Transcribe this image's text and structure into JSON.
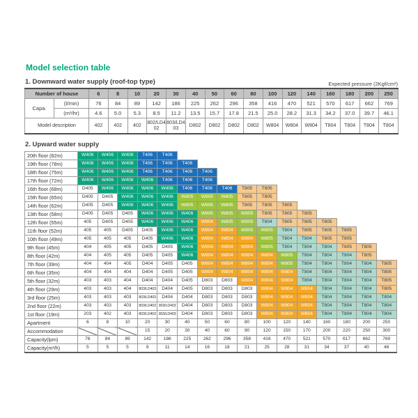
{
  "page_title": "Model selection table",
  "accent_color": "#00a87e",
  "section1": {
    "heading": "1. Downward water supply (roof-top type)",
    "note": "Expected pressure (2Kgf/cm²)",
    "header_label": "Number of house",
    "house_counts": [
      "6",
      "8",
      "10",
      "20",
      "30",
      "40",
      "50",
      "60",
      "80",
      "100",
      "120",
      "140",
      "160",
      "180",
      "200",
      "250"
    ],
    "capa_label": "Capa.",
    "capa_rows": [
      {
        "unit": "(ℓ/min)",
        "values": [
          "76",
          "84",
          "89",
          "142",
          "186",
          "225",
          "262",
          "296",
          "358",
          "416",
          "470",
          "521",
          "570",
          "617",
          "662",
          "769"
        ]
      },
      {
        "unit": "(m³/hr)",
        "values": [
          "4.6",
          "5.0",
          "5.3",
          "8.5",
          "11.2",
          "13.5",
          "15.7",
          "17.8",
          "21.5",
          "25.0",
          "28.2",
          "31.3",
          "34.2",
          "37.0",
          "39.7",
          "46.1"
        ]
      }
    ],
    "model_label": "Model description",
    "models": [
      "402",
      "402",
      "402",
      "802/LD402",
      "803/LD403",
      "D802",
      "D802",
      "D802",
      "D802",
      "W804",
      "W804",
      "W804",
      "T804",
      "T804",
      "T804",
      "T804"
    ]
  },
  "section2": {
    "heading": "2. Upward water supply",
    "floors": [
      {
        "label": "20th floor (82m)",
        "cells": [
          "W406",
          "W406",
          "W406",
          "T406",
          "T406",
          null,
          null,
          null,
          null,
          null,
          null,
          null,
          null,
          null,
          null,
          null
        ]
      },
      {
        "label": "19th floor (78m)",
        "cells": [
          "W406",
          "W406",
          "W406",
          "T406",
          "T406",
          "T406",
          null,
          null,
          null,
          null,
          null,
          null,
          null,
          null,
          null,
          null
        ]
      },
      {
        "label": "18th floor (75m)",
        "cells": [
          "W406",
          "W406",
          "W406",
          "T406",
          "T406",
          "T406",
          "T406",
          null,
          null,
          null,
          null,
          null,
          null,
          null,
          null,
          null
        ]
      },
      {
        "label": "17th floor (72m)",
        "cells": [
          "W406",
          "W406",
          "W406",
          "W406",
          "T406",
          "T406",
          "T406",
          null,
          null,
          null,
          null,
          null,
          null,
          null,
          null,
          null
        ]
      },
      {
        "label": "16th floor (68m)",
        "cells": [
          "D405",
          "W406",
          "W406",
          "W406",
          "W406",
          "T406",
          "T406",
          "T406",
          "T805",
          "T805",
          null,
          null,
          null,
          null,
          null,
          null
        ]
      },
      {
        "label": "15th floor (65m)",
        "cells": [
          "D405",
          "D405",
          "W406",
          "W406",
          "W406",
          "W805",
          "W805",
          "W805",
          "T805",
          "T805",
          null,
          null,
          null,
          null,
          null,
          null
        ]
      },
      {
        "label": "14th floor (62m)",
        "cells": [
          "D405",
          "D405",
          "W406",
          "W406",
          "W406",
          "W805",
          "W805",
          "W805",
          "T805",
          "T805",
          "T805",
          null,
          null,
          null,
          null,
          null
        ]
      },
      {
        "label": "13th floor (58m)",
        "cells": [
          "D405",
          "D405",
          "D405",
          "W406",
          "W406",
          "W406",
          "W805",
          "W805",
          "W805",
          "T805",
          "T805",
          "T805",
          null,
          null,
          null,
          null
        ]
      },
      {
        "label": "12th floor (55m)",
        "cells": [
          "405",
          "D405",
          "D405",
          "W406",
          "W406",
          "W406",
          "W804",
          "W805",
          "W805",
          "T804",
          "T805",
          "T805",
          "T805",
          null,
          null,
          null
        ]
      },
      {
        "label": "11th floor (52m)",
        "cells": [
          "405",
          "405",
          "D405",
          "D405",
          "W406",
          "W406",
          "W804",
          "W804",
          "W805",
          "W805",
          "T804",
          "T805",
          "T805",
          "T805",
          null,
          null
        ]
      },
      {
        "label": "10th floor (49m)",
        "cells": [
          "405",
          "405",
          "405",
          "D405",
          "W406",
          "W406",
          "W804",
          "W804",
          "W804",
          "W805",
          "T804",
          "T804",
          "T805",
          "T805",
          null,
          null
        ]
      },
      {
        "label": "9th floor (45m)",
        "cells": [
          "404",
          "405",
          "405",
          "D405",
          "D405",
          "W406",
          "W804",
          "W804",
          "W804",
          "W805",
          "T804",
          "T804",
          "T804",
          "T805",
          "T805",
          null
        ]
      },
      {
        "label": "8th floor (42m)",
        "cells": [
          "404",
          "405",
          "405",
          "D405",
          "D405",
          "W406",
          "W804",
          "W804",
          "W804",
          "W804",
          "W805",
          "T804",
          "T804",
          "T804",
          "T805",
          null
        ]
      },
      {
        "label": "7th floor (39m)",
        "cells": [
          "404",
          "404",
          "405",
          "D404",
          "D405",
          "D405",
          "W804",
          "W804",
          "W804",
          "W804",
          "W805",
          "T804",
          "T804",
          "T804",
          "T804",
          "T805"
        ]
      },
      {
        "label": "6th floor (35m)",
        "cells": [
          "404",
          "404",
          "404",
          "D404",
          "D405",
          "D405",
          "W804",
          "W804",
          "W804",
          "W804",
          "W804",
          "T804",
          "T804",
          "T804",
          "T804",
          "T805"
        ]
      },
      {
        "label": "5th floor (32m)",
        "cells": [
          "403",
          "403",
          "404",
          "D404",
          "D404",
          "D405",
          "D803",
          "D803",
          "W804",
          "W804",
          "W804",
          "T804",
          "T804",
          "T804",
          "T804",
          "T805"
        ]
      },
      {
        "label": "4th floor (29m)",
        "cells": [
          "403",
          "403",
          "404",
          "803/LD403",
          "D404",
          "D405",
          "D803",
          "D803",
          "D803",
          "W804",
          "W804",
          "W804",
          "T804",
          "T804",
          "T804",
          "T805"
        ]
      },
      {
        "label": "3rd floor (25m)",
        "cells": [
          "403",
          "403",
          "403",
          "803/LD403",
          "D404",
          "D404",
          "D803",
          "D803",
          "D803",
          "W804",
          "W804",
          "W804",
          "T804",
          "T804",
          "T804",
          "T804"
        ]
      },
      {
        "label": "2nd floor (22m)",
        "cells": [
          "403",
          "403",
          "403",
          "803/LD403",
          "803/LD403",
          "D404",
          "D803",
          "D803",
          "D803",
          "W804",
          "W804",
          "W804",
          "T804",
          "T804",
          "T804",
          "T804"
        ]
      },
      {
        "label": "1st floor (19m)",
        "cells": [
          "203",
          "402",
          "403",
          "803/LD403",
          "803/LD403",
          "D404",
          "D803",
          "D803",
          "D803",
          "W804",
          "W804",
          "W804",
          "T804",
          "T804",
          "T804",
          "T804"
        ]
      }
    ],
    "bottom_rows": [
      {
        "label": "Apartment",
        "values": [
          "6",
          "8",
          "10",
          "20",
          "30",
          "40",
          "50",
          "60",
          "80",
          "100",
          "120",
          "140",
          "160",
          "180",
          "200",
          "250"
        ]
      },
      {
        "label": "Accommodation",
        "values": [
          "/",
          "/",
          "/",
          "15",
          "20",
          "30",
          "40",
          "60",
          "90",
          "120",
          "150",
          "170",
          "200",
          "220",
          "250",
          "300"
        ]
      },
      {
        "label": "Capacity(lpm)",
        "values": [
          "76",
          "84",
          "89",
          "142",
          "186",
          "225",
          "262",
          "296",
          "358",
          "416",
          "470",
          "521",
          "570",
          "617",
          "662",
          "769"
        ]
      },
      {
        "label": "Capacity(m³/h)",
        "values": [
          "5",
          "5",
          "5",
          "9",
          "11",
          "14",
          "16",
          "18",
          "21",
          "25",
          "28",
          "31",
          "34",
          "37",
          "40",
          "46"
        ]
      }
    ]
  },
  "cell_colors": {
    "W406": {
      "bg": "#0ba57f",
      "fg": "#ffffff"
    },
    "T406": {
      "bg": "#1d6fba",
      "fg": "#ffffff"
    },
    "W805": {
      "bg": "#9cc43d",
      "fg": "#ffffff"
    },
    "W804": {
      "bg": "#f5a723",
      "fg": "#ffffff"
    },
    "T805": {
      "bg": "#f6c98e",
      "fg": "#253d52"
    },
    "T804": {
      "bg": "#aedacb",
      "fg": "#253d52"
    }
  }
}
